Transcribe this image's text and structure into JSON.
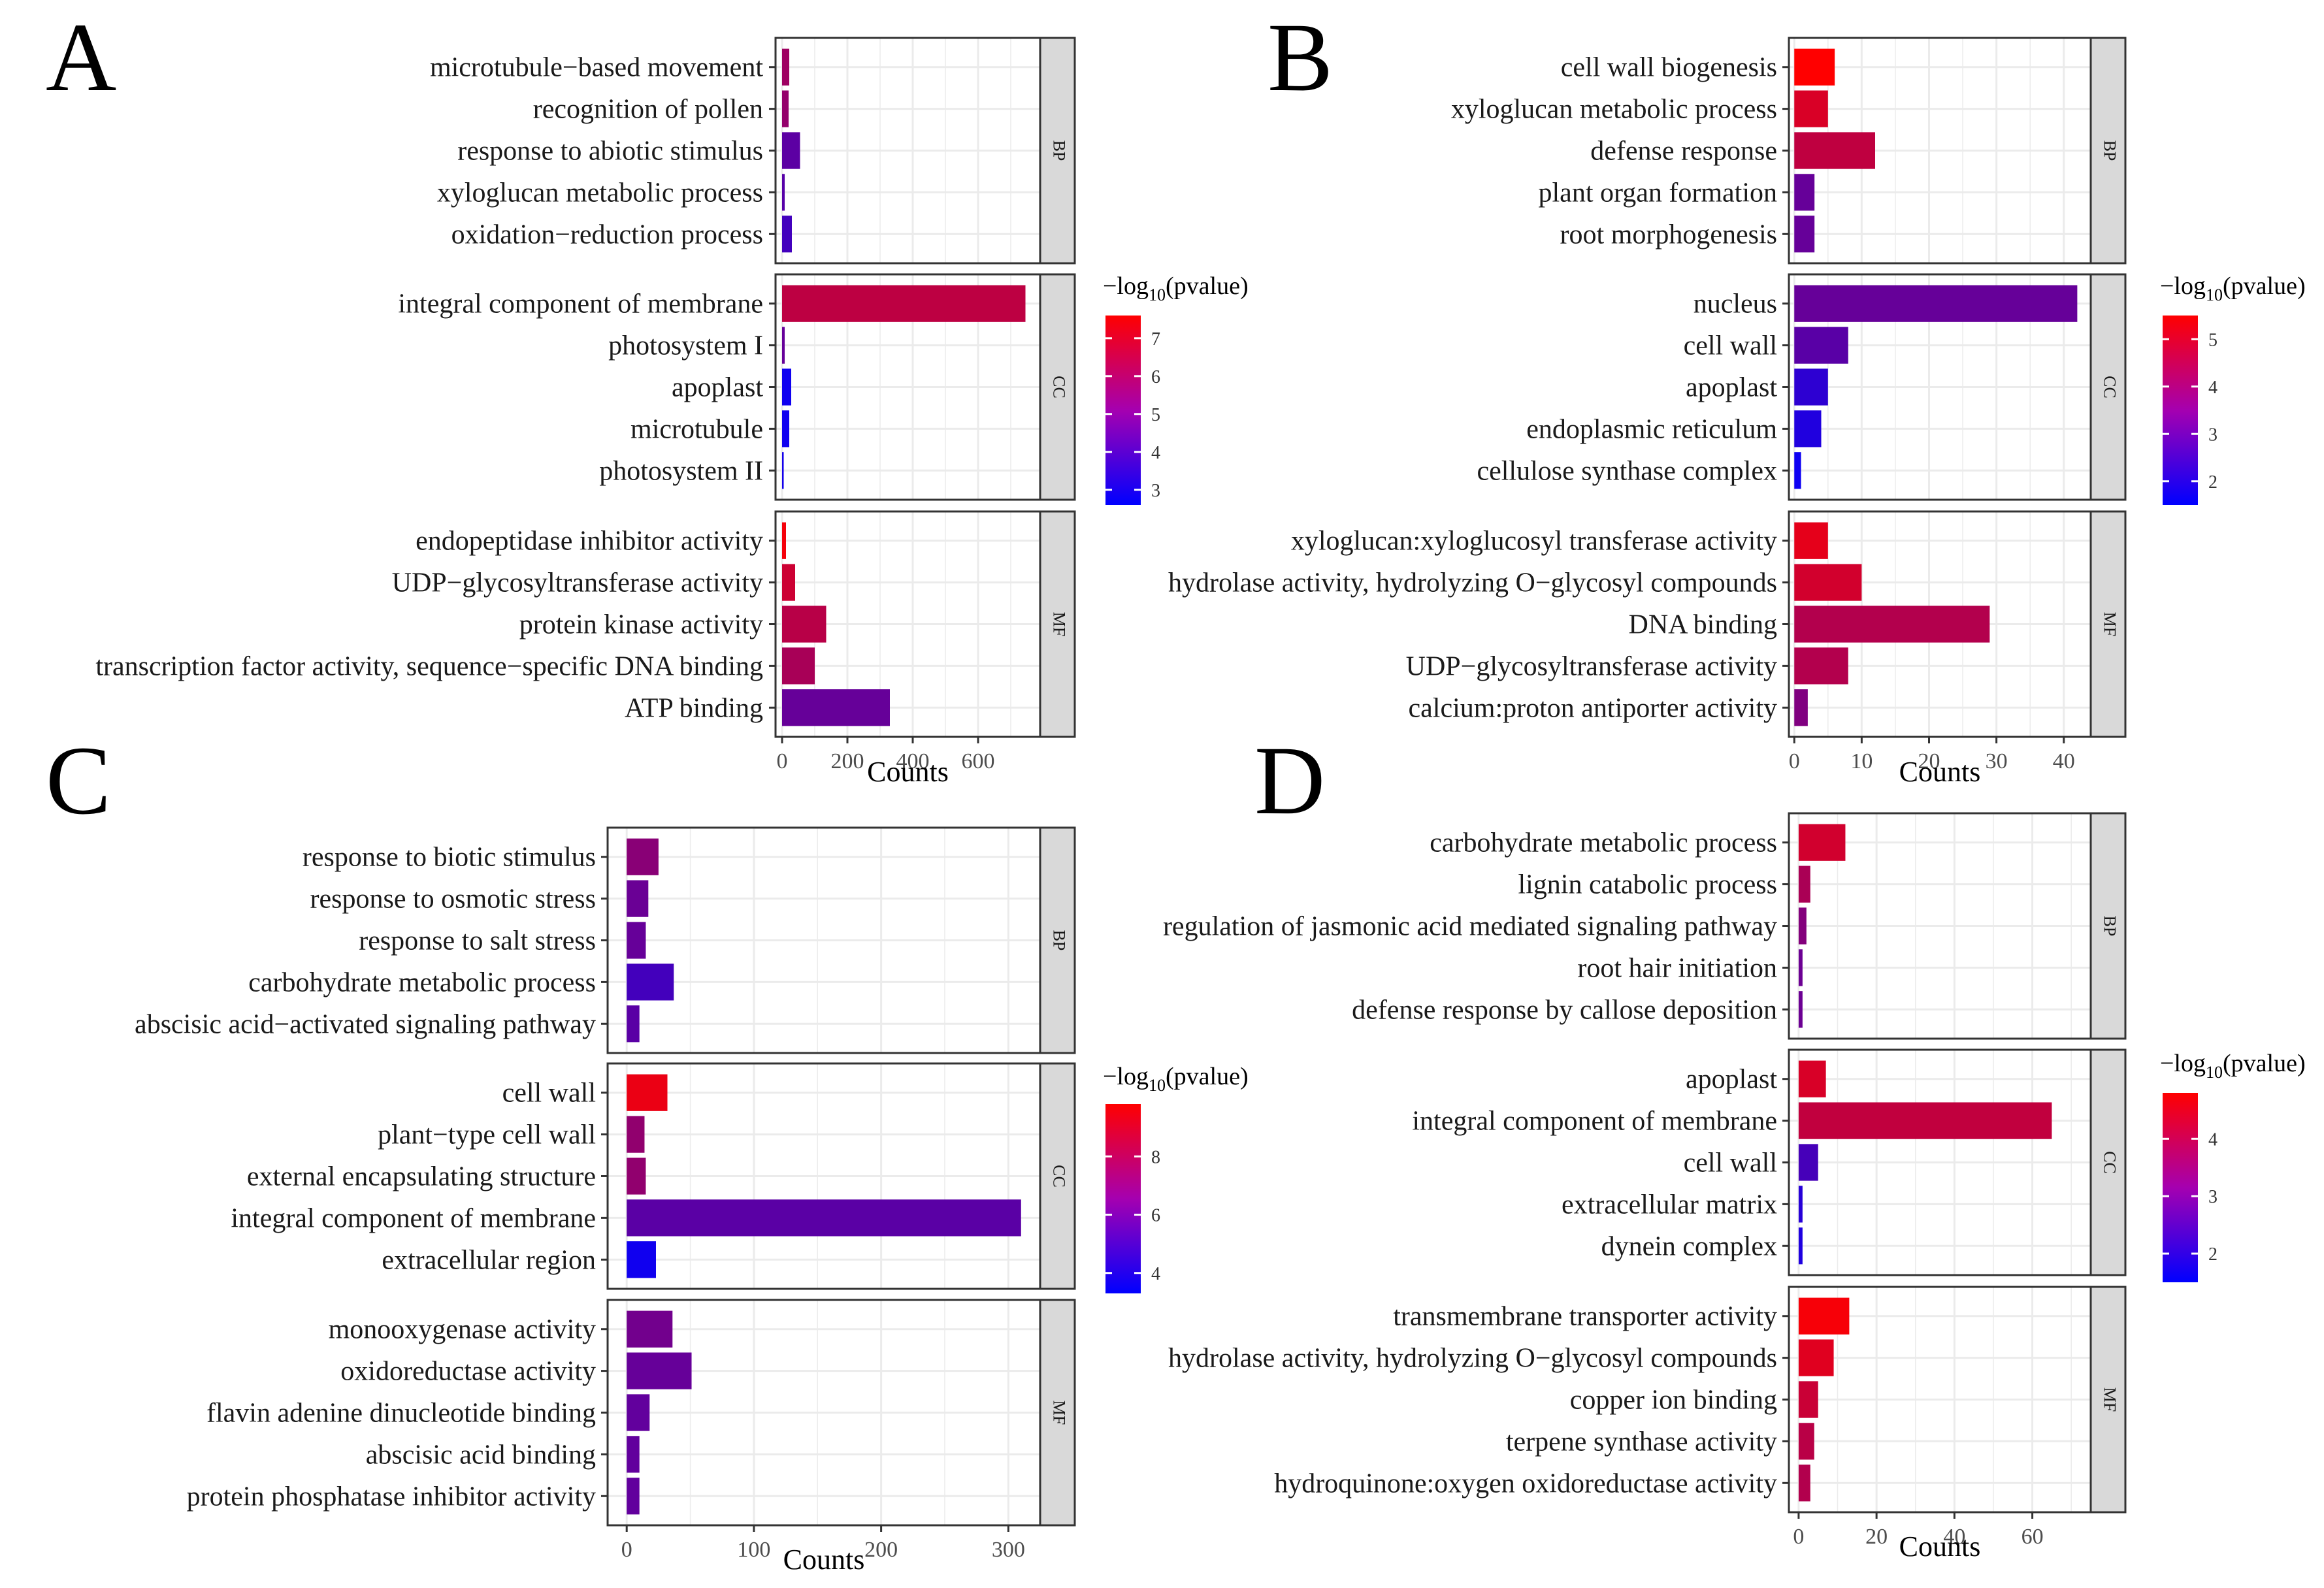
{
  "colors": {
    "high": "#FF0000",
    "low": "#0000FF",
    "strip": "#D9D9D9",
    "grid": "#EBEBEB"
  },
  "shared": {
    "xlabel": "Counts",
    "legend_title": "−log₁₀(pvalue)",
    "legend_prefix": "−log",
    "legend_sub": "10",
    "legend_suffix": "(pvalue)"
  },
  "chart_data": [
    {
      "type": "bar",
      "orientation": "horizontal",
      "panel_letter": "A",
      "xlabel": "Counts",
      "xlim": [
        -20,
        790
      ],
      "xticks": [
        0,
        200,
        400,
        600
      ],
      "legend": {
        "range": [
          2.6,
          7.6
        ],
        "ticks": [
          3,
          4,
          5,
          6,
          7
        ]
      },
      "facets": [
        {
          "name": "BP",
          "terms": [
            {
              "label": "microtubule−based movement",
              "value": 22,
              "score": 5.7
            },
            {
              "label": "recognition of pollen",
              "value": 20,
              "score": 5.5
            },
            {
              "label": "response to abiotic stimulus",
              "value": 55,
              "score": 4.4
            },
            {
              "label": "xyloglucan metabolic process",
              "value": 8,
              "score": 4.3
            },
            {
              "label": "oxidation−reduction process",
              "value": 30,
              "score": 3.9
            }
          ]
        },
        {
          "name": "CC",
          "terms": [
            {
              "label": "integral component of membrane",
              "value": 745,
              "score": 6.3
            },
            {
              "label": "photosystem I",
              "value": 8,
              "score": 4.6
            },
            {
              "label": "apoplast",
              "value": 28,
              "score": 2.9
            },
            {
              "label": "microtubule",
              "value": 22,
              "score": 2.9
            },
            {
              "label": "photosystem II",
              "value": 5,
              "score": 3.0
            }
          ]
        },
        {
          "name": "MF",
          "terms": [
            {
              "label": "endopeptidase inhibitor activity",
              "value": 12,
              "score": 7.4
            },
            {
              "label": "UDP−glycosyltransferase activity",
              "value": 40,
              "score": 6.6
            },
            {
              "label": "protein kinase activity",
              "value": 135,
              "score": 6.2
            },
            {
              "label": "transcription factor activity, sequence−specific DNA binding",
              "value": 100,
              "score": 5.9
            },
            {
              "label": "ATP binding",
              "value": 330,
              "score": 4.6
            }
          ]
        }
      ]
    },
    {
      "type": "bar",
      "orientation": "horizontal",
      "panel_letter": "B",
      "xlabel": "Counts",
      "xlim": [
        -0.8,
        44
      ],
      "xticks": [
        0,
        10,
        20,
        30,
        40
      ],
      "legend": {
        "range": [
          1.5,
          5.5
        ],
        "ticks": [
          2,
          3,
          4,
          5
        ]
      },
      "facets": [
        {
          "name": "BP",
          "terms": [
            {
              "label": "cell wall biogenesis",
              "value": 6,
              "score": 5.5
            },
            {
              "label": "xyloglucan metabolic process",
              "value": 5,
              "score": 4.9
            },
            {
              "label": "defense response",
              "value": 12,
              "score": 4.5
            },
            {
              "label": "plant organ formation",
              "value": 3,
              "score": 3.1
            },
            {
              "label": "root morphogenesis",
              "value": 3,
              "score": 3.1
            }
          ]
        },
        {
          "name": "CC",
          "terms": [
            {
              "label": "nucleus",
              "value": 42,
              "score": 3.1
            },
            {
              "label": "cell wall",
              "value": 8,
              "score": 2.9
            },
            {
              "label": "apoplast",
              "value": 5,
              "score": 2.2
            },
            {
              "label": "endoplasmic reticulum",
              "value": 4,
              "score": 2.0
            },
            {
              "label": "cellulose synthase complex",
              "value": 1,
              "score": 1.7
            }
          ]
        },
        {
          "name": "MF",
          "terms": [
            {
              "label": "xyloglucan:xyloglucosyl transferase activity",
              "value": 5,
              "score": 5.1
            },
            {
              "label": "hydrolase activity, hydrolyzing O−glycosyl compounds",
              "value": 10,
              "score": 4.8
            },
            {
              "label": "DNA binding",
              "value": 29,
              "score": 4.3
            },
            {
              "label": "UDP−glycosyltransferase activity",
              "value": 8,
              "score": 4.3
            },
            {
              "label": "calcium:proton antiporter activity",
              "value": 2,
              "score": 3.5
            }
          ]
        }
      ]
    },
    {
      "type": "bar",
      "orientation": "horizontal",
      "panel_letter": "C",
      "xlabel": "Counts",
      "xlim": [
        -15,
        325
      ],
      "xticks": [
        0,
        100,
        200,
        300
      ],
      "legend": {
        "range": [
          3.3,
          9.8
        ],
        "ticks": [
          4,
          6,
          8
        ]
      },
      "facets": [
        {
          "name": "BP",
          "terms": [
            {
              "label": "response to biotic stimulus",
              "value": 25,
              "score": 6.8
            },
            {
              "label": "response to osmotic stress",
              "value": 17,
              "score": 6.0
            },
            {
              "label": "response to salt stress",
              "value": 15,
              "score": 5.9
            },
            {
              "label": "carbohydrate metabolic process",
              "value": 37,
              "score": 5.0
            },
            {
              "label": "abscisic acid−activated signaling pathway",
              "value": 10,
              "score": 5.6
            }
          ]
        },
        {
          "name": "CC",
          "terms": [
            {
              "label": "cell wall",
              "value": 32,
              "score": 9.3
            },
            {
              "label": "plant−type cell wall",
              "value": 14,
              "score": 7.0
            },
            {
              "label": "external encapsulating structure",
              "value": 15,
              "score": 7.0
            },
            {
              "label": "integral component of membrane",
              "value": 310,
              "score": 5.6
            },
            {
              "label": "extracellular region",
              "value": 23,
              "score": 3.7
            }
          ]
        },
        {
          "name": "MF",
          "terms": [
            {
              "label": "monooxygenase activity",
              "value": 36,
              "score": 6.2
            },
            {
              "label": "oxidoreductase activity",
              "value": 51,
              "score": 5.9
            },
            {
              "label": "flavin adenine dinucleotide binding",
              "value": 18,
              "score": 5.8
            },
            {
              "label": "abscisic acid binding",
              "value": 10,
              "score": 5.8
            },
            {
              "label": "protein phosphatase inhibitor activity",
              "value": 10,
              "score": 5.8
            }
          ]
        }
      ]
    },
    {
      "type": "bar",
      "orientation": "horizontal",
      "panel_letter": "D",
      "xlabel": "Counts",
      "xlim": [
        -2.5,
        75
      ],
      "xticks": [
        0,
        20,
        40,
        60
      ],
      "legend": {
        "range": [
          1.5,
          4.8
        ],
        "ticks": [
          2,
          3,
          4
        ]
      },
      "facets": [
        {
          "name": "BP",
          "terms": [
            {
              "label": "carbohydrate metabolic process",
              "value": 12,
              "score": 4.2
            },
            {
              "label": "lignin catabolic process",
              "value": 3,
              "score": 3.7
            },
            {
              "label": "regulation of jasmonic acid mediated signaling pathway",
              "value": 2,
              "score": 3.2
            },
            {
              "label": "root hair initiation",
              "value": 1,
              "score": 2.9
            },
            {
              "label": "defense response by callose deposition",
              "value": 1,
              "score": 2.9
            }
          ]
        },
        {
          "name": "CC",
          "terms": [
            {
              "label": "apoplast",
              "value": 7,
              "score": 4.3
            },
            {
              "label": "integral component of membrane",
              "value": 65,
              "score": 4.0
            },
            {
              "label": "cell wall",
              "value": 5,
              "score": 2.4
            },
            {
              "label": "extracellular matrix",
              "value": 1,
              "score": 2.0
            },
            {
              "label": "dynein complex",
              "value": 1,
              "score": 1.9
            }
          ]
        },
        {
          "name": "MF",
          "terms": [
            {
              "label": "transmembrane transporter activity",
              "value": 13,
              "score": 4.7
            },
            {
              "label": "hydrolase activity, hydrolyzing O−glycosyl compounds",
              "value": 9,
              "score": 4.4
            },
            {
              "label": "copper ion binding",
              "value": 5,
              "score": 4.1
            },
            {
              "label": "terpene synthase activity",
              "value": 4,
              "score": 3.9
            },
            {
              "label": "hydroquinone:oxygen oxidoreductase activity",
              "value": 3,
              "score": 3.8
            }
          ]
        }
      ]
    }
  ]
}
